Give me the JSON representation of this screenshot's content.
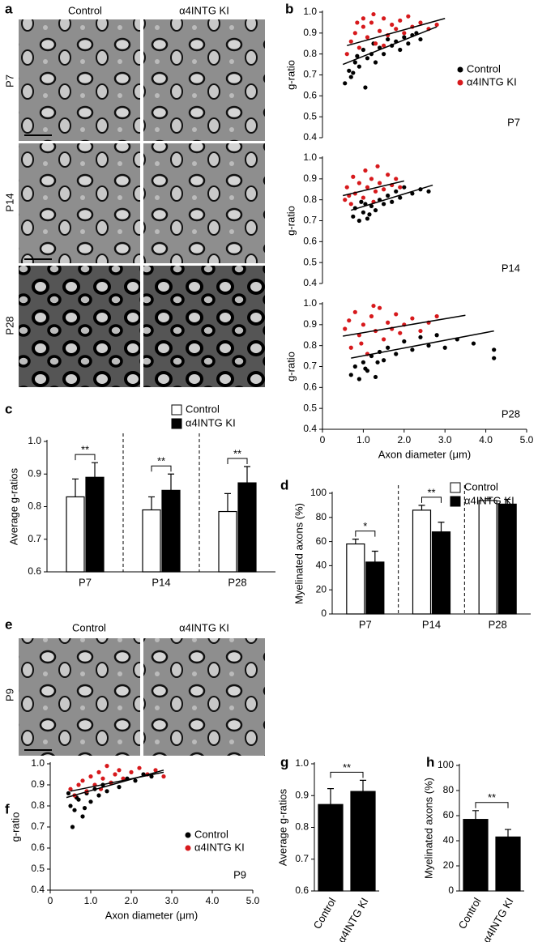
{
  "micrographs": [
    {
      "panel": "a",
      "columns": [
        "Control",
        "α4INTG KI"
      ],
      "rows": [
        "P7",
        "P14",
        "P28"
      ]
    },
    {
      "panel": "e",
      "columns": [
        "Control",
        "α4INTG KI"
      ],
      "rows": [
        "P9"
      ]
    }
  ],
  "chart_data": [
    {
      "type": "scatter",
      "panel": "b",
      "label": "P7",
      "ylabel": "g-ratio",
      "legend": "right",
      "xlim": [
        0,
        5
      ],
      "ylim": [
        0.4,
        1.0
      ],
      "yticks": [
        0.4,
        0.5,
        0.6,
        0.7,
        0.8,
        0.9,
        {
          "value": 1,
          "label": "1.0"
        }
      ],
      "series": [
        {
          "name": "Control",
          "color": "#000000",
          "x": [
            0.55,
            0.65,
            0.7,
            0.8,
            0.85,
            0.9,
            1.0,
            1.05,
            1.1,
            1.2,
            1.25,
            1.3,
            1.4,
            1.5,
            1.6,
            1.7,
            1.8,
            1.9,
            2.0,
            2.1,
            2.2,
            2.3,
            2.4,
            0.75
          ],
          "values": [
            0.66,
            0.72,
            0.69,
            0.76,
            0.79,
            0.74,
            0.82,
            0.64,
            0.78,
            0.8,
            0.85,
            0.76,
            0.83,
            0.8,
            0.87,
            0.84,
            0.86,
            0.82,
            0.88,
            0.85,
            0.89,
            0.9,
            0.87,
            0.71
          ],
          "fit": {
            "x": [
              0.5,
              2.8
            ],
            "y": [
              0.75,
              0.93
            ]
          }
        },
        {
          "name": "α4INTG KI",
          "color": "#d7191c",
          "x": [
            0.6,
            0.7,
            0.8,
            0.9,
            1.0,
            1.1,
            1.2,
            1.3,
            1.4,
            1.5,
            1.6,
            1.7,
            1.8,
            1.9,
            2.0,
            2.1,
            2.2,
            2.4,
            2.6,
            2.8,
            1.0,
            1.5,
            0.85,
            1.25
          ],
          "values": [
            0.8,
            0.86,
            0.9,
            0.83,
            0.93,
            0.88,
            0.95,
            0.85,
            0.91,
            0.97,
            0.89,
            0.94,
            0.92,
            0.96,
            0.9,
            0.98,
            0.93,
            0.95,
            0.92,
            0.94,
            0.97,
            0.84,
            0.95,
            0.99
          ],
          "fit": {
            "x": [
              0.6,
              3.0
            ],
            "y": [
              0.84,
              0.97
            ]
          }
        }
      ]
    },
    {
      "type": "scatter",
      "label": "P14",
      "ylabel": "g-ratio",
      "xlim": [
        0,
        5
      ],
      "ylim": [
        0.4,
        1.0
      ],
      "yticks": [
        0.4,
        0.5,
        0.6,
        0.7,
        0.8,
        0.9,
        {
          "value": 1,
          "label": "1.0"
        }
      ],
      "series": [
        {
          "name": "Control",
          "color": "#000000",
          "x": [
            0.75,
            0.8,
            0.9,
            1.0,
            1.05,
            1.1,
            1.2,
            1.3,
            1.4,
            1.5,
            1.6,
            1.7,
            1.8,
            1.9,
            2.0,
            2.2,
            2.4,
            2.6,
            1.15,
            0.95
          ],
          "values": [
            0.72,
            0.76,
            0.7,
            0.74,
            0.78,
            0.71,
            0.77,
            0.75,
            0.8,
            0.78,
            0.82,
            0.79,
            0.84,
            0.81,
            0.86,
            0.83,
            0.85,
            0.84,
            0.73,
            0.79
          ],
          "fit": {
            "x": [
              0.7,
              2.7
            ],
            "y": [
              0.75,
              0.87
            ]
          }
        },
        {
          "name": "α4INTG KI",
          "color": "#d7191c",
          "x": [
            0.55,
            0.6,
            0.7,
            0.75,
            0.8,
            0.9,
            1.0,
            1.05,
            1.1,
            1.2,
            1.3,
            1.35,
            1.4,
            1.5,
            1.6,
            1.7,
            1.8,
            1.9,
            0.65,
            1.25
          ],
          "values": [
            0.8,
            0.86,
            0.78,
            0.91,
            0.83,
            0.88,
            0.81,
            0.94,
            0.86,
            0.9,
            0.84,
            0.96,
            0.88,
            0.85,
            0.92,
            0.87,
            0.9,
            0.86,
            0.82,
            0.79
          ],
          "fit": {
            "x": [
              0.5,
              2.0
            ],
            "y": [
              0.82,
              0.89
            ]
          }
        }
      ]
    },
    {
      "type": "scatter",
      "label": "P28",
      "ylabel": "g-ratio",
      "xlabel": "Axon diameter (μm)",
      "xlim": [
        0,
        5
      ],
      "xticks": [
        0,
        {
          "value": 1,
          "label": "1.0"
        },
        {
          "value": 2,
          "label": "2.0"
        },
        {
          "value": 3,
          "label": "3.0"
        },
        {
          "value": 4,
          "label": "4.0"
        },
        {
          "value": 5,
          "label": "5.0"
        }
      ],
      "ylim": [
        0.4,
        1.0
      ],
      "yticks": [
        0.4,
        0.5,
        0.6,
        0.7,
        0.8,
        0.9,
        {
          "value": 1,
          "label": "1.0"
        }
      ],
      "series": [
        {
          "name": "Control",
          "color": "#000000",
          "x": [
            0.7,
            0.8,
            0.9,
            1.0,
            1.1,
            1.2,
            1.3,
            1.4,
            1.5,
            1.6,
            1.8,
            2.0,
            2.2,
            2.4,
            2.6,
            2.8,
            3.0,
            3.3,
            3.7,
            4.2,
            4.2,
            1.05,
            1.35
          ],
          "values": [
            0.66,
            0.7,
            0.64,
            0.72,
            0.68,
            0.75,
            0.65,
            0.77,
            0.73,
            0.79,
            0.76,
            0.82,
            0.78,
            0.84,
            0.8,
            0.85,
            0.79,
            0.83,
            0.81,
            0.78,
            0.74,
            0.69,
            0.72
          ],
          "fit": {
            "x": [
              0.7,
              4.2
            ],
            "y": [
              0.74,
              0.87
            ]
          }
        },
        {
          "name": "α4INTG KI",
          "color": "#d7191c",
          "x": [
            0.55,
            0.65,
            0.7,
            0.8,
            0.9,
            1.0,
            1.1,
            1.2,
            1.3,
            1.4,
            1.5,
            1.6,
            1.7,
            1.8,
            1.9,
            2.0,
            2.2,
            2.4,
            2.6,
            2.8,
            0.95,
            1.25
          ],
          "values": [
            0.88,
            0.92,
            0.79,
            0.96,
            0.85,
            0.9,
            0.76,
            0.94,
            0.87,
            0.98,
            0.83,
            0.91,
            0.88,
            0.95,
            0.86,
            0.9,
            0.93,
            0.87,
            0.91,
            0.94,
            0.81,
            0.99
          ],
          "fit": {
            "x": [
              0.5,
              3.5
            ],
            "y": [
              0.845,
              0.945
            ]
          }
        }
      ]
    },
    {
      "type": "bar",
      "panel": "c",
      "ylabel": "Average g-ratios",
      "legend": "top",
      "dividers": true,
      "categories": [
        "P7",
        "P14",
        "P28"
      ],
      "ylim": [
        0.6,
        1.0
      ],
      "yticks": [
        0.6,
        0.7,
        0.8,
        0.9,
        {
          "value": 1,
          "label": "1.0"
        }
      ],
      "significance": [
        "**",
        "**",
        "**"
      ],
      "series": [
        {
          "name": "Control",
          "color": "#ffffff",
          "values": [
            0.83,
            0.79,
            0.785
          ],
          "errors": [
            0.055,
            0.04,
            0.055
          ]
        },
        {
          "name": "α4INTG KI",
          "color": "#000000",
          "values": [
            0.89,
            0.85,
            0.873
          ],
          "errors": [
            0.045,
            0.05,
            0.05
          ]
        }
      ]
    },
    {
      "type": "bar",
      "panel": "d",
      "ylabel": "Myelinated axons (%)",
      "legend": "top",
      "dividers": true,
      "categories": [
        "P7",
        "P14",
        "P28"
      ],
      "ylim": [
        0,
        100
      ],
      "yticks": [
        0,
        20,
        40,
        60,
        80,
        100
      ],
      "significance": [
        "*",
        "**",
        null
      ],
      "series": [
        {
          "name": "Control",
          "color": "#ffffff",
          "values": [
            58,
            86,
            94
          ],
          "errors": [
            4,
            4,
            1.5
          ]
        },
        {
          "name": "α4INTG KI",
          "color": "#000000",
          "values": [
            43,
            68,
            91
          ],
          "errors": [
            9,
            8,
            4
          ]
        }
      ]
    },
    {
      "type": "scatter",
      "panel": "f",
      "label": "P9",
      "ylabel": "g-ratio",
      "xlabel": "Axon diameter (μm)",
      "legend": "right",
      "xlim": [
        0,
        5
      ],
      "xticks": [
        0,
        {
          "value": 1,
          "label": "1.0"
        },
        {
          "value": 2,
          "label": "2.0"
        },
        {
          "value": 3,
          "label": "3.0"
        },
        {
          "value": 4,
          "label": "4.0"
        },
        {
          "value": 5,
          "label": "5.0"
        }
      ],
      "ylim": [
        0.4,
        1.0
      ],
      "yticks": [
        0.4,
        0.5,
        0.6,
        0.7,
        0.8,
        0.9,
        {
          "value": 1,
          "label": "1.0"
        }
      ],
      "series": [
        {
          "name": "Control",
          "color": "#000000",
          "x": [
            0.45,
            0.5,
            0.55,
            0.6,
            0.7,
            0.8,
            0.9,
            1.0,
            1.1,
            1.2,
            1.3,
            1.4,
            1.5,
            1.7,
            1.9,
            2.1,
            2.3,
            2.5,
            0.65,
            0.85
          ],
          "values": [
            0.86,
            0.8,
            0.7,
            0.78,
            0.83,
            0.75,
            0.86,
            0.82,
            0.88,
            0.85,
            0.9,
            0.87,
            0.91,
            0.89,
            0.93,
            0.92,
            0.95,
            0.94,
            0.84,
            0.79
          ],
          "fit": {
            "x": [
              0.4,
              2.8
            ],
            "y": [
              0.84,
              0.97
            ]
          }
        },
        {
          "name": "α4INTG KI",
          "color": "#d7191c",
          "x": [
            0.5,
            0.6,
            0.7,
            0.8,
            0.9,
            1.0,
            1.1,
            1.2,
            1.3,
            1.4,
            1.5,
            1.6,
            1.7,
            1.8,
            2.0,
            2.2,
            2.4,
            2.6,
            2.8,
            1.25
          ],
          "values": [
            0.88,
            0.85,
            0.9,
            0.92,
            0.87,
            0.94,
            0.9,
            0.96,
            0.93,
            0.99,
            0.91,
            0.95,
            0.97,
            0.93,
            0.96,
            0.98,
            0.95,
            0.97,
            0.94,
            0.88
          ],
          "fit": {
            "x": [
              0.5,
              2.8
            ],
            "y": [
              0.87,
              0.96
            ]
          }
        }
      ]
    },
    {
      "type": "bar",
      "panel": "g",
      "ylabel": "Average g-ratios",
      "categories": [
        "Control",
        "α4INTG KI"
      ],
      "ylim": [
        0.6,
        1.0
      ],
      "yticks": [
        0.6,
        0.7,
        0.8,
        0.9,
        {
          "value": 1,
          "label": "1.0"
        }
      ],
      "significance": "**",
      "color": "#000000",
      "values": [
        0.872,
        0.913
      ],
      "errors": [
        0.05,
        0.035
      ]
    },
    {
      "type": "bar",
      "panel": "h",
      "ylabel": "Myelinated axons (%)",
      "categories": [
        "Control",
        "α4INTG KI"
      ],
      "ylim": [
        0,
        100
      ],
      "yticks": [
        0,
        20,
        40,
        60,
        80,
        100
      ],
      "significance": "**",
      "color": "#000000",
      "values": [
        57,
        43
      ],
      "errors": [
        7,
        6
      ]
    }
  ]
}
